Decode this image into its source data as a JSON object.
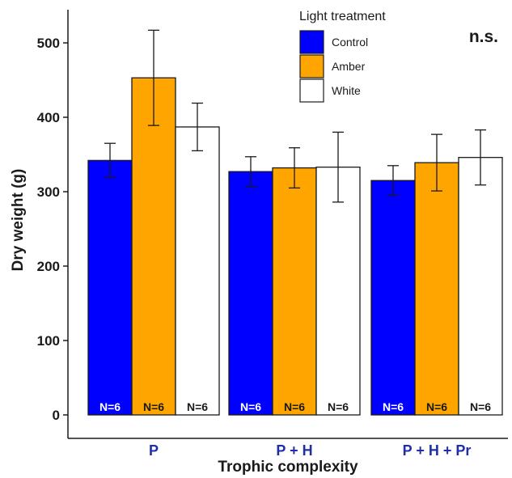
{
  "chart_data": {
    "type": "bar",
    "categories": [
      "P",
      "P + H",
      "P + H + Pr"
    ],
    "series": [
      {
        "name": "Control",
        "values": [
          342,
          327,
          315
        ],
        "error": [
          23,
          20,
          20
        ],
        "n_labels": [
          "N=6",
          "N=6",
          "N=6"
        ]
      },
      {
        "name": "Amber",
        "values": [
          453,
          332,
          339
        ],
        "error": [
          64,
          27,
          38
        ],
        "n_labels": [
          "N=6",
          "N=6",
          "N=6"
        ]
      },
      {
        "name": "White",
        "values": [
          387,
          333,
          346
        ],
        "error": [
          32,
          47,
          37
        ],
        "n_labels": [
          "N=6",
          "N=6",
          "N=6"
        ]
      }
    ],
    "title": "",
    "xlabel": "Trophic complexity",
    "ylabel": "Dry weight (g)",
    "ylim": [
      0,
      540
    ],
    "yticks": [
      0,
      100,
      200,
      300,
      400,
      500
    ],
    "legend_title": "Light treatment",
    "legend_position": "top-right",
    "annotation": "n.s.",
    "grid": false,
    "colors": {
      "Control": "#0000ff",
      "Amber": "#ffa500",
      "White": "#ffffff",
      "category_label": "#1f2fa8",
      "n_label_dark_bar": "#ffffff",
      "n_label_light_bar": "#1a1a1a"
    }
  }
}
